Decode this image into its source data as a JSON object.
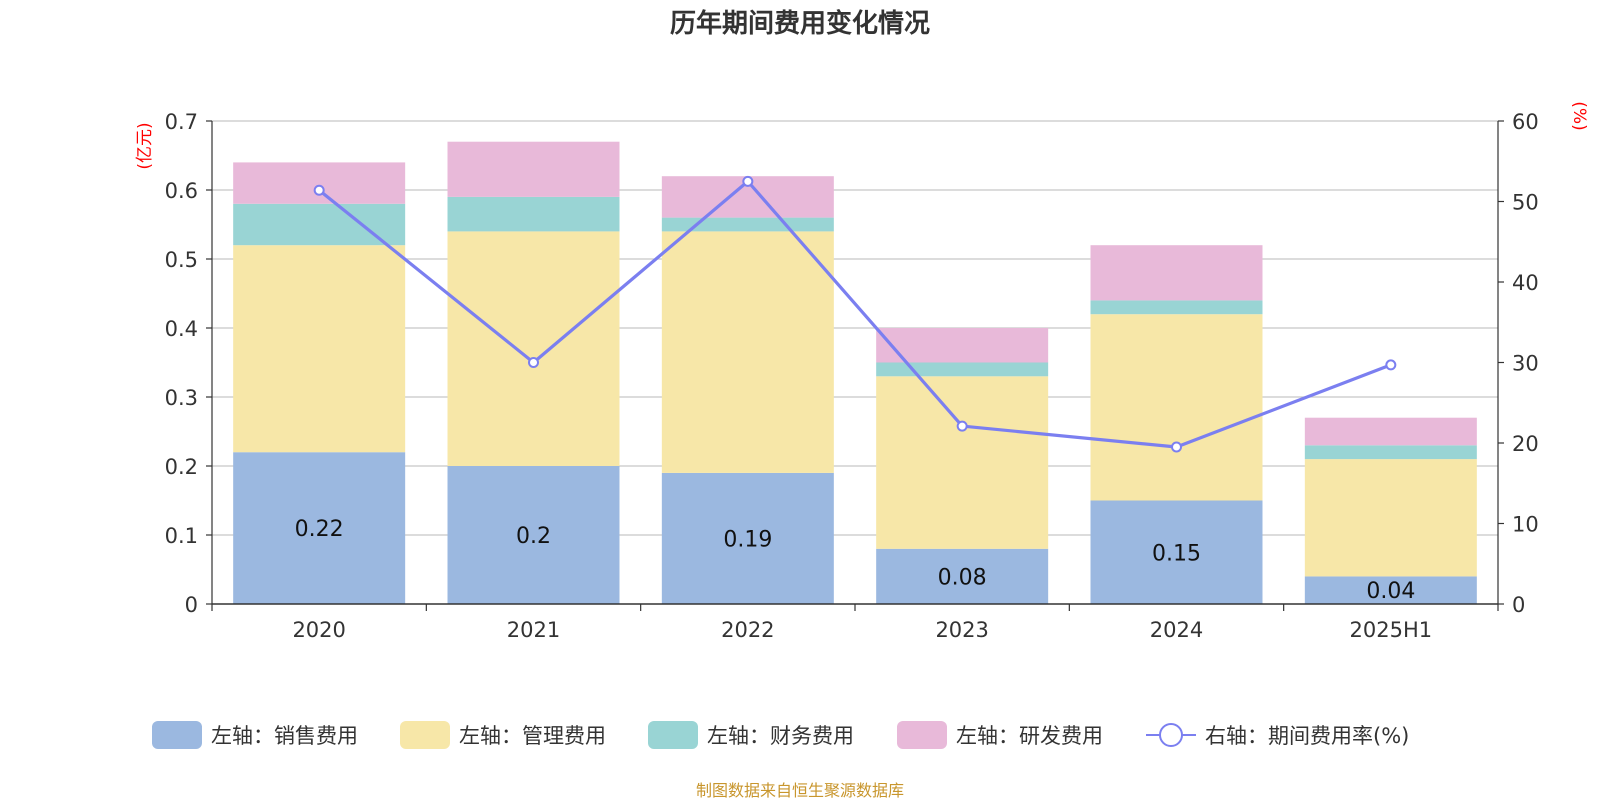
{
  "chart_data": {
    "type": "bar",
    "title": "历年期间费用变化情况",
    "categories": [
      "2020",
      "2021",
      "2022",
      "2023",
      "2024",
      "2025H1"
    ],
    "y_left": {
      "unit": "(亿元)",
      "min": 0,
      "max": 0.7,
      "step": 0.1
    },
    "y_right": {
      "unit": "(%)",
      "min": 0,
      "max": 60,
      "step": 10
    },
    "grid": true,
    "legend_position": "bottom",
    "series": [
      {
        "name": "左轴：销售费用",
        "kind": "bar",
        "axis": "left",
        "color": "#9bb8e0",
        "values": [
          0.22,
          0.2,
          0.19,
          0.08,
          0.15,
          0.04
        ],
        "labels": [
          "0.22",
          "0.2",
          "0.19",
          "0.08",
          "0.15",
          "0.04"
        ]
      },
      {
        "name": "左轴：管理费用",
        "kind": "bar",
        "axis": "left",
        "color": "#f7e7a8",
        "values": [
          0.3,
          0.34,
          0.35,
          0.25,
          0.27,
          0.17
        ]
      },
      {
        "name": "左轴：财务费用",
        "kind": "bar",
        "axis": "left",
        "color": "#99d4d4",
        "values": [
          0.06,
          0.05,
          0.02,
          0.02,
          0.02,
          0.02
        ]
      },
      {
        "name": "左轴：研发费用",
        "kind": "bar",
        "axis": "left",
        "color": "#e8b9d9",
        "values": [
          0.06,
          0.08,
          0.06,
          0.05,
          0.08,
          0.04
        ]
      },
      {
        "name": "右轴：期间费用率(%)",
        "kind": "line",
        "axis": "right",
        "color": "#7b7ff0",
        "values": [
          51.4,
          30.0,
          52.5,
          22.1,
          19.5,
          29.7
        ]
      }
    ]
  },
  "footer": {
    "source": "制图数据来自恒生聚源数据库"
  }
}
